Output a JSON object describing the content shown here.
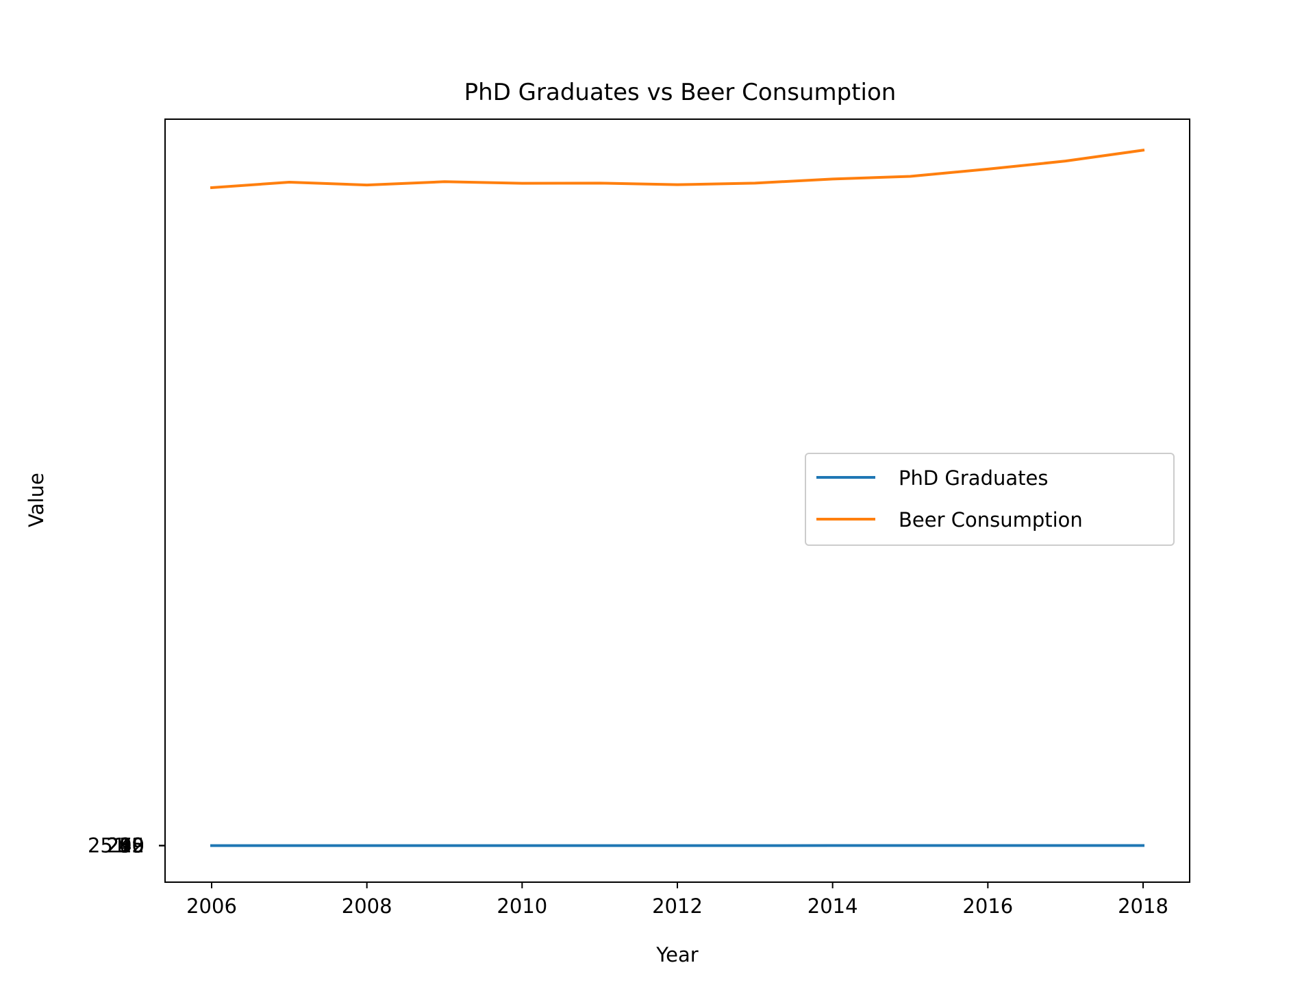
{
  "chart_data": {
    "type": "line",
    "title": "PhD Graduates vs Beer Consumption",
    "xlabel": "Year",
    "ylabel": "Value",
    "x": [
      2006,
      2007,
      2008,
      2009,
      2010,
      2011,
      2012,
      2013,
      2014,
      2015,
      2016,
      2017,
      2018
    ],
    "xticks": [
      "2006",
      "2008",
      "2010",
      "2012",
      "2014",
      "2016",
      "2018"
    ],
    "yticks_overlapping": [
      "200",
      "215",
      "232",
      "245",
      "251.5",
      "259",
      "279",
      "290"
    ],
    "xlim": [
      2005.4,
      2018.6
    ],
    "ylim": [
      -23000,
      461500
    ],
    "grid": false,
    "legend_position": "center-right",
    "series": [
      {
        "name": "PhD Graduates",
        "color": "#1f77b4",
        "values": [
          200,
          205,
          210,
          215,
          218,
          224,
          232,
          238,
          245,
          251.5,
          259,
          268,
          279
        ]
      },
      {
        "name": "Beer Consumption",
        "color": "#ff7f0e",
        "values": [
          418000,
          421500,
          419700,
          421800,
          420800,
          420900,
          419900,
          420900,
          423500,
          425200,
          429800,
          434900,
          441800
        ]
      }
    ]
  }
}
